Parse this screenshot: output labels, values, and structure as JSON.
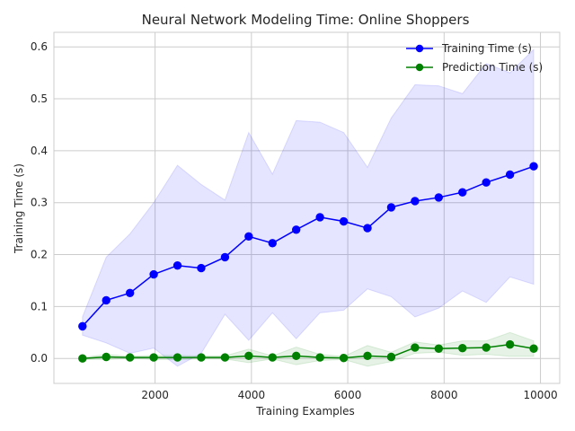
{
  "chart_data": {
    "type": "line",
    "title": "Neural Network Modeling Time: Online Shoppers",
    "xlabel": "Training Examples",
    "ylabel": "Training Time (s)",
    "xlim": [
      -100,
      10400
    ],
    "ylim": [
      -0.048,
      0.628
    ],
    "xticks": [
      2000,
      4000,
      6000,
      8000,
      10000
    ],
    "xtick_labels": [
      "2000",
      "4000",
      "6000",
      "8000",
      "10000"
    ],
    "yticks": [
      0.0,
      0.1,
      0.2,
      0.3,
      0.4,
      0.5,
      0.6
    ],
    "ytick_labels": [
      "0.0",
      "0.1",
      "0.2",
      "0.3",
      "0.4",
      "0.5",
      "0.6"
    ],
    "grid": true,
    "legend_position": "top-right",
    "x": [
      493,
      986,
      1479,
      1972,
      2465,
      2958,
      3451,
      3944,
      4437,
      4930,
      5423,
      5916,
      6409,
      6902,
      7395,
      7888,
      8381,
      8874,
      9367,
      9860
    ],
    "series": [
      {
        "name": "Training Time (s)",
        "color": "#0000ff",
        "band_color": "#0000ff",
        "values": [
          0.062,
          0.112,
          0.126,
          0.162,
          0.179,
          0.174,
          0.195,
          0.235,
          0.222,
          0.248,
          0.272,
          0.264,
          0.251,
          0.291,
          0.303,
          0.31,
          0.32,
          0.339,
          0.354,
          0.37
        ],
        "upper": [
          0.08,
          0.195,
          0.24,
          0.3,
          0.372,
          0.335,
          0.305,
          0.435,
          0.355,
          0.458,
          0.455,
          0.435,
          0.368,
          0.463,
          0.527,
          0.525,
          0.51,
          0.568,
          0.55,
          0.595
        ],
        "lower": [
          0.045,
          0.03,
          0.01,
          0.02,
          -0.015,
          0.01,
          0.085,
          0.035,
          0.088,
          0.038,
          0.088,
          0.093,
          0.134,
          0.119,
          0.08,
          0.097,
          0.13,
          0.108,
          0.157,
          0.143
        ]
      },
      {
        "name": "Prediction Time (s)",
        "color": "#008000",
        "band_color": "#008000",
        "values": [
          0.0,
          0.003,
          0.002,
          0.002,
          0.002,
          0.002,
          0.002,
          0.005,
          0.002,
          0.005,
          0.002,
          0.001,
          0.005,
          0.003,
          0.021,
          0.019,
          0.02,
          0.021,
          0.027,
          0.019
        ],
        "upper": [
          0.002,
          0.008,
          0.004,
          0.006,
          0.006,
          0.005,
          0.005,
          0.018,
          0.005,
          0.022,
          0.008,
          0.004,
          0.025,
          0.012,
          0.032,
          0.026,
          0.034,
          0.034,
          0.05,
          0.034
        ],
        "lower": [
          -0.002,
          -0.002,
          0.0,
          -0.002,
          -0.002,
          -0.001,
          -0.001,
          -0.008,
          -0.001,
          -0.012,
          -0.004,
          -0.002,
          -0.015,
          -0.006,
          0.01,
          0.012,
          0.006,
          0.008,
          0.004,
          0.004
        ]
      }
    ]
  }
}
